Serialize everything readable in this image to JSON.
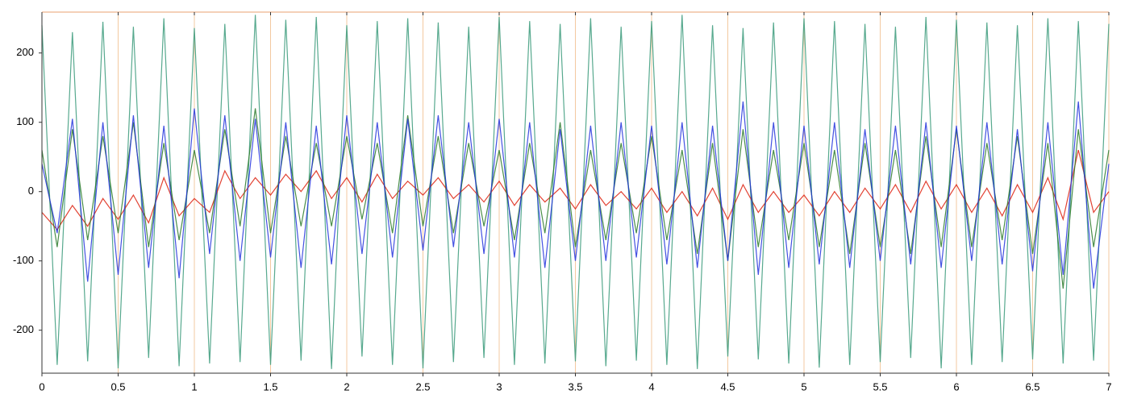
{
  "chart_data": {
    "type": "line",
    "x": [
      0,
      0.1,
      0.2,
      0.3,
      0.4,
      0.5,
      0.6,
      0.7,
      0.8,
      0.9,
      1,
      1.1,
      1.2,
      1.3,
      1.4,
      1.5,
      1.6,
      1.7,
      1.8,
      1.9,
      2,
      2.1,
      2.2,
      2.3,
      2.4,
      2.5,
      2.6,
      2.7,
      2.8,
      2.9,
      3,
      3.1,
      3.2,
      3.3,
      3.4,
      3.5,
      3.6,
      3.7,
      3.8,
      3.9,
      4,
      4.1,
      4.2,
      4.3,
      4.4,
      4.5,
      4.6,
      4.7,
      4.8,
      4.9,
      5,
      5.1,
      5.2,
      5.3,
      5.4,
      5.5,
      5.6,
      5.7,
      5.8,
      5.9,
      6,
      6.1,
      6.2,
      6.3,
      6.4,
      6.5,
      6.6,
      6.7,
      6.8,
      6.9,
      7
    ],
    "series": [
      {
        "color": "#3a9a7a",
        "values": [
          240,
          -250,
          230,
          -245,
          245,
          -255,
          238,
          -240,
          250,
          -252,
          236,
          -248,
          242,
          -246,
          255,
          -250,
          248,
          -244,
          252,
          -256,
          240,
          -238,
          246,
          -250,
          250,
          -255,
          244,
          -246,
          238,
          -240,
          252,
          -250,
          246,
          -248,
          242,
          -245,
          250,
          -252,
          238,
          -244,
          246,
          -250,
          255,
          -256,
          240,
          -238,
          236,
          -242,
          244,
          -248,
          250,
          -254,
          246,
          -250,
          242,
          -246,
          238,
          -240,
          252,
          -255,
          248,
          -250,
          244,
          -246,
          240,
          -242,
          250,
          -248,
          246,
          -244,
          242
        ]
      },
      {
        "color": "#dd2211",
        "values": [
          -30,
          -55,
          -20,
          -50,
          -10,
          -40,
          -5,
          -45,
          20,
          -35,
          -10,
          -30,
          30,
          -10,
          20,
          -5,
          25,
          0,
          30,
          -10,
          20,
          -15,
          25,
          -10,
          15,
          -5,
          20,
          -10,
          10,
          -15,
          15,
          -20,
          10,
          -15,
          5,
          -25,
          10,
          -20,
          0,
          -25,
          5,
          -30,
          0,
          -35,
          5,
          -40,
          10,
          -30,
          0,
          -30,
          -5,
          -35,
          0,
          -30,
          5,
          -25,
          10,
          -30,
          15,
          -25,
          10,
          -30,
          5,
          -35,
          10,
          -30,
          20,
          -40,
          60,
          -30,
          0
        ]
      },
      {
        "color": "#2a7a2a",
        "values": [
          60,
          -80,
          90,
          -70,
          80,
          -60,
          100,
          -80,
          70,
          -70,
          60,
          -60,
          90,
          -50,
          120,
          -60,
          80,
          -50,
          70,
          -50,
          80,
          -40,
          70,
          -60,
          110,
          -50,
          80,
          -60,
          70,
          -50,
          60,
          -70,
          70,
          -60,
          100,
          -80,
          60,
          -70,
          70,
          -60,
          80,
          -70,
          60,
          -90,
          70,
          -100,
          90,
          -80,
          60,
          -70,
          70,
          -80,
          60,
          -90,
          70,
          -80,
          60,
          -90,
          80,
          -80,
          90,
          -80,
          70,
          -70,
          80,
          -90,
          70,
          -140,
          90,
          -80,
          60
        ]
      },
      {
        "color": "#2233dd",
        "values": [
          40,
          -60,
          105,
          -130,
          100,
          -120,
          110,
          -110,
          95,
          -125,
          120,
          -90,
          110,
          -100,
          105,
          -95,
          100,
          -110,
          95,
          -105,
          110,
          -90,
          100,
          -95,
          105,
          -85,
          110,
          -80,
          100,
          -90,
          105,
          -95,
          100,
          -110,
          90,
          -100,
          95,
          -100,
          100,
          -95,
          95,
          -105,
          100,
          -110,
          95,
          -100,
          130,
          -120,
          100,
          -110,
          95,
          -105,
          100,
          -110,
          90,
          -100,
          95,
          -105,
          100,
          -110,
          95,
          -100,
          100,
          -105,
          90,
          -115,
          100,
          -120,
          130,
          -140,
          40
        ]
      }
    ],
    "xlim": [
      0,
      7
    ],
    "xticks": [
      0,
      0.5,
      1,
      1.5,
      2,
      2.5,
      3,
      3.5,
      4,
      4.5,
      5,
      5.5,
      6,
      6.5,
      7
    ],
    "ylim": [
      -262,
      259
    ],
    "yticks": [
      -200,
      -100,
      0,
      100,
      200
    ],
    "grid": true,
    "grid_color": "#f3c9a0"
  }
}
